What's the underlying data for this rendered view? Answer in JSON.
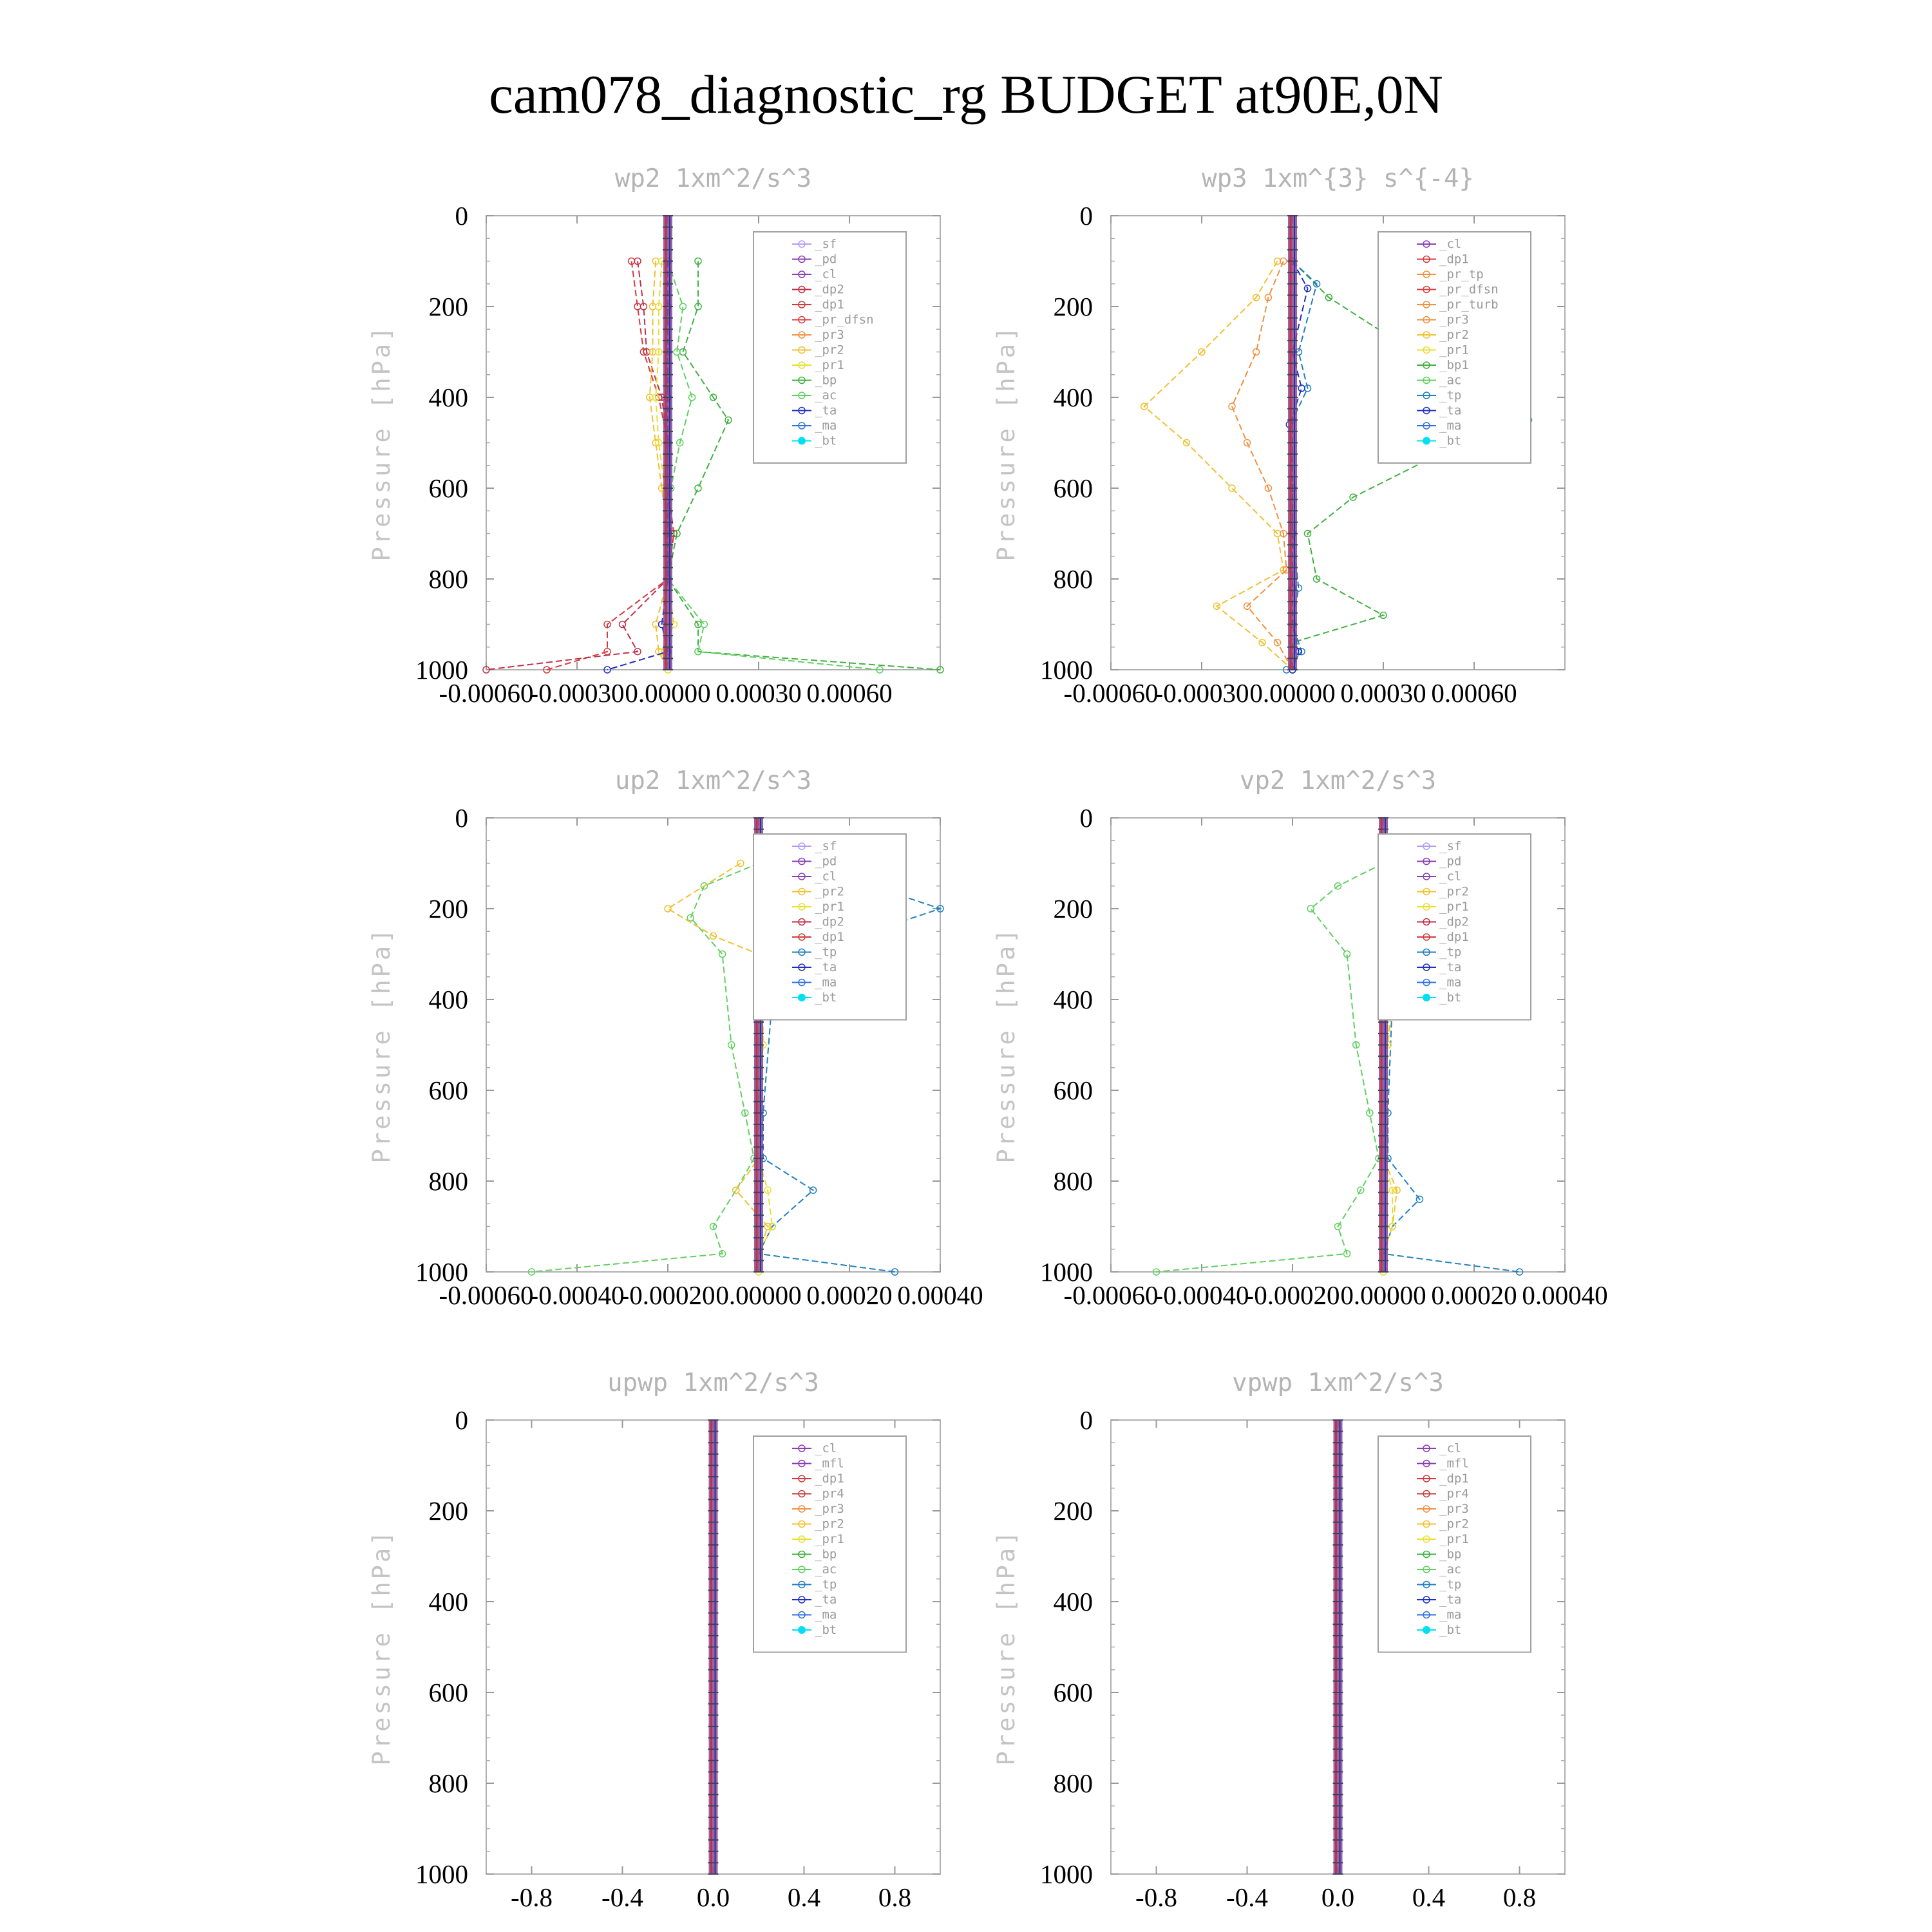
{
  "title": "cam078_diagnostic_rg  BUDGET at90E,0N",
  "colors": {
    "sf": "#b49cf0",
    "pd": "#8a3fb5",
    "cl": "#8a3fb5",
    "dp2": "#c0304a",
    "dp1": "#d03c3c",
    "pr_dfsn": "#d84040",
    "pr3": "#f09040",
    "pr2": "#f0c030",
    "pr1": "#e8e030",
    "bp": "#40b040",
    "ac": "#60d060",
    "tp": "#2080c0",
    "ta": "#2030c0",
    "ma": "#3070e0",
    "bt": "#00e0f0",
    "mfl": "#8a3fb5",
    "pr4": "#c04040"
  },
  "chart_data": [
    {
      "type": "line",
      "title": "wp2   1xm^2/s^3",
      "ylabel": "Pressure [hPa]",
      "xlim": [
        -0.0006,
        0.0009
      ],
      "ylim": [
        1000,
        0
      ],
      "xticks": [
        "-0.00060",
        "-0.00030",
        "0.00000",
        "0.00030",
        "0.00060"
      ],
      "xtick_values": [
        -0.0006,
        -0.0003,
        0.0,
        0.0003,
        0.0006
      ],
      "yticks": [
        "0",
        "200",
        "400",
        "600",
        "800",
        "1000"
      ],
      "legend": [
        "_sf",
        "_pd",
        "_cl",
        "_dp2",
        "_dp1",
        "_pr_dfsn",
        "_pr3",
        "_pr2",
        "_pr1",
        "_bp",
        "_ac",
        "_ta",
        "_ma",
        "_bt"
      ],
      "series": [
        {
          "key": "dp1",
          "x": [
            -0.00012,
            -0.0001,
            -8e-05,
            -3e-05,
            0.0,
            0.0,
            2e-05,
            0.0,
            -0.0002,
            -0.0002,
            -0.0004
          ],
          "y": [
            100,
            200,
            300,
            400,
            500,
            600,
            700,
            800,
            900,
            960,
            1000
          ]
        },
        {
          "key": "dp2",
          "x": [
            -0.0001,
            -8e-05,
            -7e-05,
            -2e-05,
            0.0,
            0.0,
            1e-05,
            0.0,
            -0.00015,
            -0.0001,
            -0.0006
          ],
          "y": [
            100,
            200,
            300,
            400,
            500,
            600,
            700,
            800,
            900,
            960,
            1000
          ]
        },
        {
          "key": "bp",
          "x": [
            0.0001,
            0.0001,
            5e-05,
            0.00015,
            0.0002,
            0.0001,
            3e-05,
            0.0,
            0.0001,
            0.0001,
            0.0009
          ],
          "y": [
            100,
            200,
            300,
            400,
            450,
            600,
            700,
            800,
            900,
            960,
            1000
          ]
        },
        {
          "key": "ac",
          "x": [
            0.0,
            5e-05,
            3e-05,
            8e-05,
            4e-05,
            1e-05,
            0.0,
            0.0,
            0.00012,
            0.0001,
            0.0007
          ],
          "y": [
            100,
            200,
            300,
            400,
            500,
            600,
            700,
            800,
            900,
            960,
            1000
          ]
        },
        {
          "key": "pr2",
          "x": [
            -4e-05,
            -5e-05,
            -5e-05,
            -6e-05,
            -4e-05,
            -2e-05,
            0.0,
            0.0,
            -4e-05,
            -3e-05,
            0.0
          ],
          "y": [
            100,
            200,
            300,
            400,
            500,
            600,
            700,
            800,
            900,
            960,
            1000
          ]
        },
        {
          "key": "pr1",
          "x": [
            -2e-05,
            -3e-05,
            -3e-05,
            -4e-05,
            -3e-05,
            -1e-05,
            0.0,
            0.0,
            2e-05,
            -2e-05,
            0.0
          ],
          "y": [
            100,
            200,
            300,
            400,
            500,
            600,
            700,
            800,
            900,
            960,
            1000
          ]
        },
        {
          "key": "ta",
          "x": [
            0.0,
            0.0,
            0.0,
            0.0,
            0.0,
            0.0,
            0.0,
            0.0,
            -2e-05,
            0.0,
            -0.0002
          ],
          "y": [
            100,
            200,
            300,
            400,
            500,
            600,
            700,
            800,
            900,
            960,
            1000
          ]
        }
      ]
    },
    {
      "type": "line",
      "title": "wp3   1xm^{3} s^{-4}",
      "ylabel": "Pressure [hPa]",
      "xlim": [
        -0.0006,
        0.0009
      ],
      "ylim": [
        1000,
        0
      ],
      "xticks": [
        "-0.00060",
        "-0.00030",
        "0.00000",
        "0.00030",
        "0.00060"
      ],
      "xtick_values": [
        -0.0006,
        -0.0003,
        0.0,
        0.0003,
        0.0006
      ],
      "yticks": [
        "0",
        "200",
        "400",
        "600",
        "800",
        "1000"
      ],
      "legend": [
        "_cl",
        "_dp1",
        "_pr_tp",
        "_pr_dfsn",
        "_pr_turb",
        "_pr3",
        "_pr2",
        "_pr1",
        "_bp1",
        "_ac",
        "_tp",
        "_ta",
        "_ma",
        "_bt"
      ],
      "series": [
        {
          "key": "pr2",
          "x": [
            -5e-05,
            -0.00012,
            -0.0003,
            -0.00049,
            -0.00035,
            -0.0002,
            -5e-05,
            -3e-05,
            -0.00025,
            -0.0001,
            0.0
          ],
          "y": [
            100,
            180,
            300,
            420,
            500,
            600,
            700,
            780,
            860,
            940,
            1000
          ]
        },
        {
          "key": "pr3",
          "x": [
            -3e-05,
            -8e-05,
            -0.00012,
            -0.0002,
            -0.00015,
            -8e-05,
            -3e-05,
            -2e-05,
            -0.00015,
            -5e-05,
            0.0
          ],
          "y": [
            100,
            180,
            300,
            420,
            500,
            600,
            700,
            780,
            860,
            940,
            1000
          ]
        },
        {
          "key": "bp",
          "x": [
            0.0,
            0.00012,
            0.0004,
            0.00078,
            0.0005,
            0.0002,
            5e-05,
            8e-05,
            0.0003,
            0.0,
            0.0
          ],
          "y": [
            100,
            180,
            300,
            450,
            520,
            620,
            700,
            800,
            880,
            940,
            1000
          ]
        },
        {
          "key": "tp",
          "x": [
            0.0,
            8e-05,
            2e-05,
            5e-05,
            0.0,
            0.0,
            0.0,
            2e-05,
            0.0,
            3e-05,
            -2e-05
          ],
          "y": [
            100,
            150,
            300,
            380,
            450,
            600,
            700,
            820,
            900,
            960,
            1000
          ]
        },
        {
          "key": "ta",
          "x": [
            0.0,
            5e-05,
            0.0,
            3e-05,
            -1e-05,
            0.0,
            0.0,
            0.0,
            0.0,
            2e-05,
            0.0
          ],
          "y": [
            100,
            160,
            300,
            380,
            460,
            600,
            700,
            820,
            900,
            960,
            1000
          ]
        }
      ]
    },
    {
      "type": "line",
      "title": "up2   1xm^2/s^3",
      "ylabel": "Pressure [hPa]",
      "xlim": [
        -0.0006,
        0.0004
      ],
      "ylim": [
        1000,
        0
      ],
      "xticks": [
        "-0.00060",
        "-0.00040",
        "-0.00020",
        "0.00000",
        "0.00020",
        "0.00040"
      ],
      "xtick_values": [
        -0.0006,
        -0.0004,
        -0.0002,
        0.0,
        0.0002,
        0.0004
      ],
      "yticks": [
        "0",
        "200",
        "400",
        "600",
        "800",
        "1000"
      ],
      "legend": [
        "_sf",
        "_pd",
        "_cl",
        "_pr2",
        "_pr1",
        "_dp2",
        "_dp1",
        "_tp",
        "_ta",
        "_ma",
        "_bt"
      ],
      "series": [
        {
          "key": "ac",
          "x": [
            0.0,
            -0.00012,
            -0.00015,
            -8e-05,
            -6e-05,
            -3e-05,
            -1e-05,
            -5e-05,
            -0.0001,
            -8e-05,
            -0.0005
          ],
          "y": [
            100,
            150,
            220,
            300,
            500,
            650,
            750,
            820,
            900,
            960,
            1000
          ]
        },
        {
          "key": "pr2",
          "x": [
            -4e-05,
            -0.0002,
            -0.0001,
            0.0,
            0.0,
            0.0,
            0.0,
            -5e-05,
            2e-05,
            0.0,
            0.0
          ],
          "y": [
            100,
            200,
            260,
            300,
            500,
            650,
            750,
            820,
            900,
            960,
            1000
          ]
        },
        {
          "key": "tp",
          "x": [
            0.0,
            0.00025,
            0.0004,
            0.0001,
            3e-05,
            1e-05,
            1e-05,
            0.00012,
            3e-05,
            0.0,
            0.0003
          ],
          "y": [
            100,
            150,
            200,
            300,
            400,
            650,
            750,
            820,
            900,
            960,
            1000
          ]
        },
        {
          "key": "pr1",
          "x": [
            0.0,
            2e-05,
            2e-05,
            1e-05,
            1e-05,
            0.0,
            0.0,
            2e-05,
            3e-05,
            0.0,
            0.0
          ],
          "y": [
            100,
            200,
            300,
            400,
            500,
            650,
            750,
            820,
            900,
            960,
            1000
          ]
        }
      ]
    },
    {
      "type": "line",
      "title": "vp2   1xm^2/s^3",
      "ylabel": "Pressure [hPa]",
      "xlim": [
        -0.0006,
        0.0004
      ],
      "ylim": [
        1000,
        0
      ],
      "xticks": [
        "-0.00060",
        "-0.00040",
        "-0.00020",
        "0.00000",
        "0.00020",
        "0.00040"
      ],
      "xtick_values": [
        -0.0006,
        -0.0004,
        -0.0002,
        0.0,
        0.0002,
        0.0004
      ],
      "yticks": [
        "0",
        "200",
        "400",
        "600",
        "800",
        "1000"
      ],
      "legend": [
        "_sf",
        "_pd",
        "_cl",
        "_pr2",
        "_pr1",
        "_dp2",
        "_dp1",
        "_tp",
        "_ta",
        "_ma",
        "_bt"
      ],
      "series": [
        {
          "key": "ac",
          "x": [
            0.0,
            -0.0001,
            -0.00016,
            -8e-05,
            -6e-05,
            -3e-05,
            -1e-05,
            -5e-05,
            -0.0001,
            -8e-05,
            -0.0005
          ],
          "y": [
            100,
            150,
            200,
            300,
            500,
            650,
            750,
            820,
            900,
            960,
            1000
          ]
        },
        {
          "key": "pr2",
          "x": [
            2e-05,
            8e-05,
            4e-05,
            2e-05,
            1e-05,
            0.0,
            0.0,
            3e-05,
            2e-05,
            0.0,
            0.0
          ],
          "y": [
            100,
            200,
            300,
            400,
            500,
            650,
            750,
            820,
            900,
            960,
            1000
          ]
        },
        {
          "key": "tp",
          "x": [
            0.0,
            0.0001,
            8e-05,
            3e-05,
            2e-05,
            1e-05,
            1e-05,
            8e-05,
            2e-05,
            0.0,
            0.0003
          ],
          "y": [
            100,
            150,
            200,
            300,
            400,
            650,
            750,
            840,
            900,
            960,
            1000
          ]
        },
        {
          "key": "pr1",
          "x": [
            0.0,
            3e-05,
            2e-05,
            1e-05,
            1e-05,
            0.0,
            0.0,
            2e-05,
            2e-05,
            0.0,
            0.0
          ],
          "y": [
            100,
            200,
            300,
            400,
            500,
            650,
            750,
            820,
            900,
            960,
            1000
          ]
        }
      ]
    },
    {
      "type": "line",
      "title": "upwp   1xm^2/s^3",
      "ylabel": "Pressure [hPa]",
      "xlim": [
        -1.0,
        1.0
      ],
      "ylim": [
        1000,
        0
      ],
      "xticks": [
        "-0.8",
        "-0.4",
        "0.0",
        "0.4",
        "0.8"
      ],
      "xtick_values": [
        -0.8,
        -0.4,
        0.0,
        0.4,
        0.8
      ],
      "yticks": [
        "0",
        "200",
        "400",
        "600",
        "800",
        "1000"
      ],
      "legend": [
        "_cl",
        "_mfl",
        "_dp1",
        "_pr4",
        "_pr3",
        "_pr2",
        "_pr1",
        "_bp",
        "_ac",
        "_tp",
        "_ta",
        "_ma",
        "_bt"
      ],
      "series": []
    },
    {
      "type": "line",
      "title": "vpwp   1xm^2/s^3",
      "ylabel": "Pressure [hPa]",
      "xlim": [
        -1.0,
        1.0
      ],
      "ylim": [
        1000,
        0
      ],
      "xticks": [
        "-0.8",
        "-0.4",
        "0.0",
        "0.4",
        "0.8"
      ],
      "xtick_values": [
        -0.8,
        -0.4,
        0.0,
        0.4,
        0.8
      ],
      "yticks": [
        "0",
        "200",
        "400",
        "600",
        "800",
        "1000"
      ],
      "legend": [
        "_cl",
        "_mfl",
        "_dp1",
        "_pr4",
        "_pr3",
        "_pr2",
        "_pr1",
        "_bp",
        "_ac",
        "_tp",
        "_ta",
        "_ma",
        "_bt"
      ],
      "series": []
    }
  ]
}
